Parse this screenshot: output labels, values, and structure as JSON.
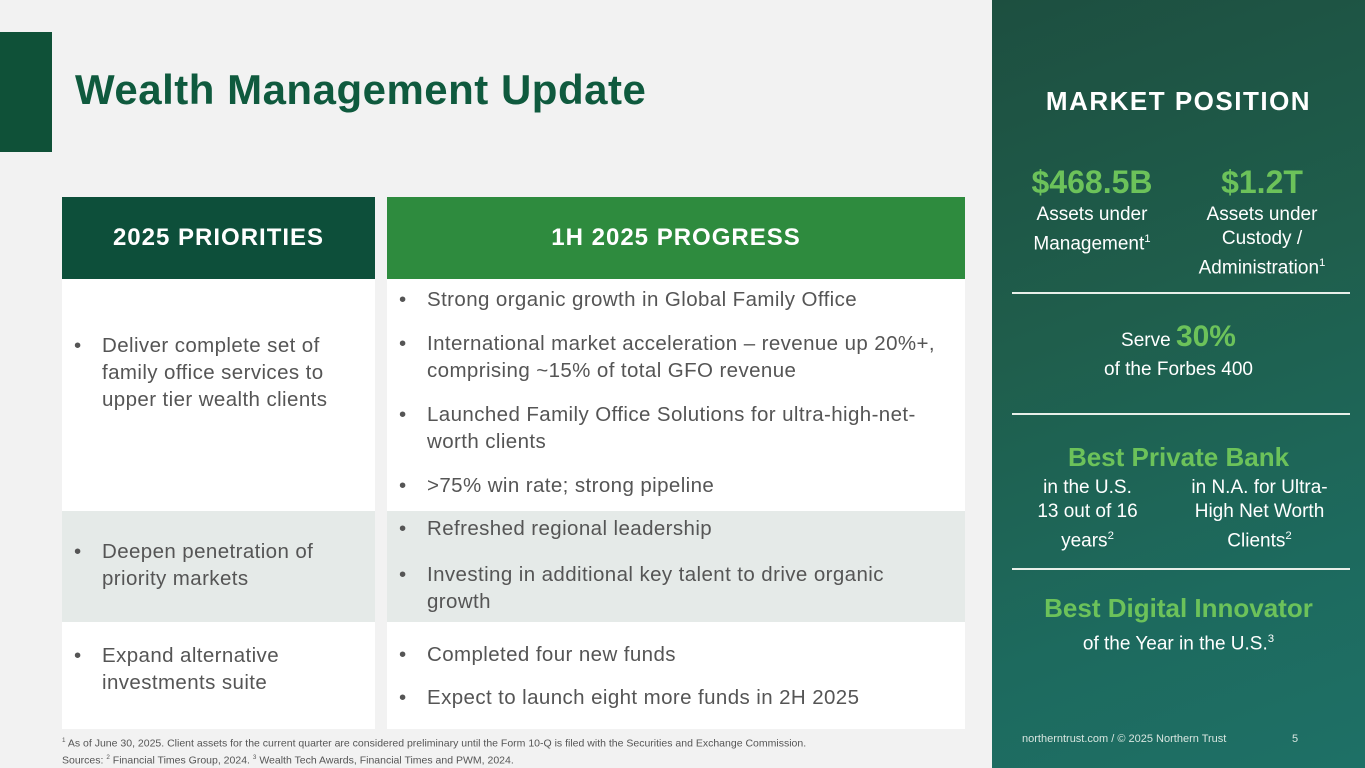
{
  "title": "Wealth Management Update",
  "table": {
    "header_left": "2025 PRIORITIES",
    "header_right": "1H 2025 PROGRESS",
    "rows": [
      {
        "priority": "Deliver complete set of family office services to upper tier wealth clients",
        "progress": [
          "Strong organic growth in Global Family Office",
          "International market acceleration – revenue up 20%+, comprising ~15% of total GFO revenue",
          "Launched Family Office Solutions for ultra-high-net-worth clients",
          ">75% win rate; strong pipeline"
        ]
      },
      {
        "priority": "Deepen penetration of priority markets",
        "progress": [
          "Refreshed regional leadership",
          "Investing in additional key talent to drive organic growth"
        ]
      },
      {
        "priority": "Expand alternative investments suite",
        "progress": [
          "Completed four new funds",
          "Expect to launch eight more funds in 2H 2025"
        ]
      }
    ]
  },
  "market": {
    "title": "MARKET POSITION",
    "aum_value": "$468.5B",
    "aum_label": "Assets under Management",
    "aum_sup": "1",
    "auc_value": "$1.2T",
    "auc_label": "Assets under Custody / Administration",
    "auc_sup": "1",
    "serve_prefix": "Serve",
    "serve_value": "30%",
    "serve_suffix": "of the Forbes 400",
    "bank_title": "Best Private Bank",
    "bank_left": "in the U.S. 13 out of 16 years",
    "bank_left_sup": "2",
    "bank_right": "in N.A. for Ultra-High Net Worth Clients",
    "bank_right_sup": "2",
    "digital_title": "Best Digital Innovator",
    "digital_sub": "of the Year in the U.S.",
    "digital_sup": "3"
  },
  "footer": {
    "note1_sup": "1",
    "note1": "As of June 30, 2025. Client assets for the current quarter are considered preliminary until the Form 10-Q is filed with the Securities and Exchange Commission.",
    "sources_label": "Sources:",
    "s2_sup": "2",
    "s2": "Financial Times Group, 2024.",
    "s3_sup": "3",
    "s3": "Wealth Tech Awards, Financial Times and PWM, 2024.",
    "site": "northerntrust.com / © 2025 Northern Trust",
    "page": "5"
  },
  "colors": {
    "dark_green": "#0d4f3a",
    "green": "#2e8b3e",
    "accent_green": "#6cc25a"
  }
}
